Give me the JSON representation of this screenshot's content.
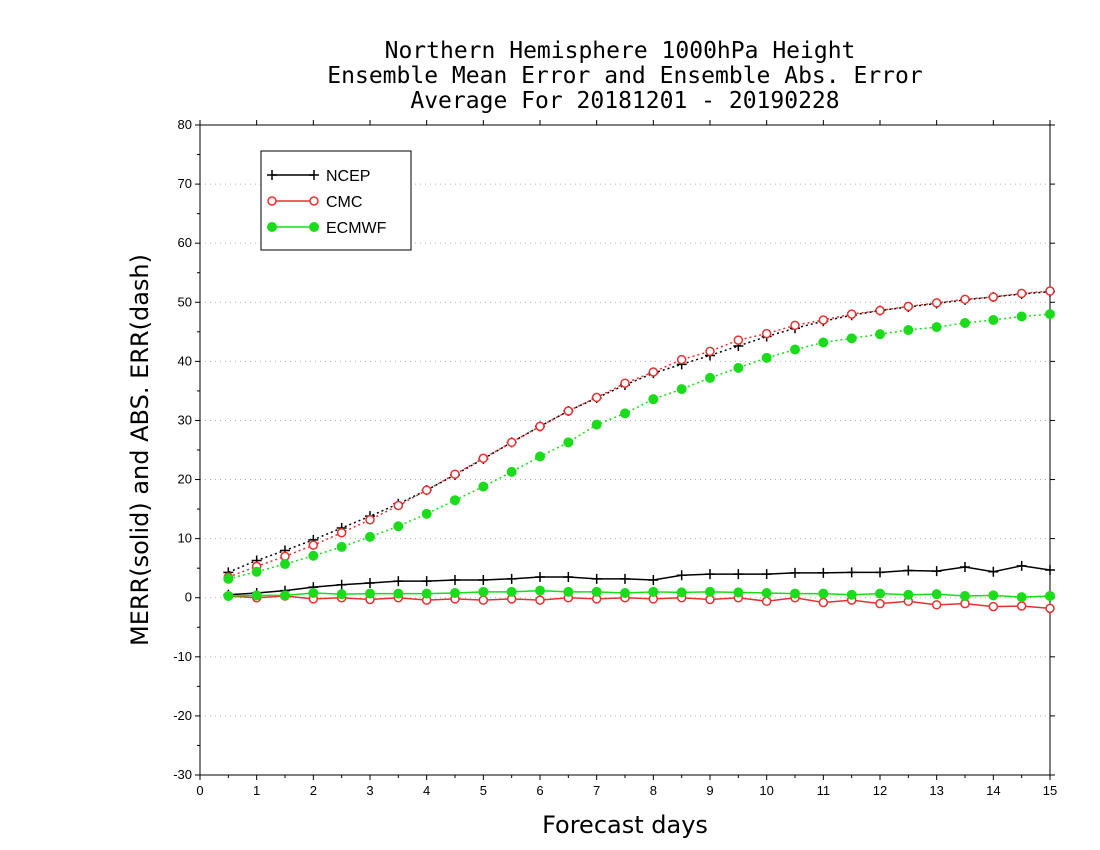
{
  "chart_data": {
    "type": "line",
    "title_lines": [
      "Northern Hemisphere 1000hPa Height",
      "Ensemble Mean Error and Ensemble Abs. Error",
      "Average For 20181201 - 20190228"
    ],
    "xlabel": "Forecast days",
    "ylabel": "MERR(solid) and ABS. ERR(dash)",
    "xlim": [
      0,
      15
    ],
    "ylim": [
      -30,
      80
    ],
    "xticks": [
      0,
      1,
      2,
      3,
      4,
      5,
      6,
      7,
      8,
      9,
      10,
      11,
      12,
      13,
      14,
      15
    ],
    "yticks": [
      -30,
      -20,
      -10,
      0,
      10,
      20,
      30,
      40,
      50,
      60,
      70,
      80
    ],
    "grid": "horizontal dotted",
    "legend_position": "top-left",
    "x": [
      0.5,
      1.0,
      1.5,
      2.0,
      2.5,
      3.0,
      3.5,
      4.0,
      4.5,
      5.0,
      5.5,
      6.0,
      6.5,
      7.0,
      7.5,
      8.0,
      8.5,
      9.0,
      9.5,
      10.0,
      10.5,
      11.0,
      11.5,
      12.0,
      12.5,
      13.0,
      13.5,
      14.0,
      14.5,
      15.0
    ],
    "series": [
      {
        "name": "NCEP",
        "color": "#000000",
        "marker": "plus",
        "merr": [
          0.5,
          0.8,
          1.2,
          1.8,
          2.2,
          2.5,
          2.8,
          2.8,
          3.0,
          3.0,
          3.2,
          3.5,
          3.5,
          3.2,
          3.2,
          3.0,
          3.8,
          4.0,
          4.0,
          4.0,
          4.2,
          4.2,
          4.3,
          4.3,
          4.6,
          4.5,
          5.2,
          4.4,
          5.4,
          4.7
        ],
        "abs_err": [
          4.3,
          6.3,
          8.0,
          9.8,
          11.8,
          13.8,
          15.9,
          18.2,
          20.8,
          23.5,
          26.3,
          29.0,
          31.6,
          33.8,
          36.0,
          38.0,
          39.5,
          41.0,
          42.6,
          44.2,
          45.6,
          46.8,
          47.8,
          48.6,
          49.2,
          49.8,
          50.4,
          50.9,
          51.4,
          51.8
        ]
      },
      {
        "name": "CMC",
        "color": "#e83030",
        "marker": "open-circle",
        "merr": [
          0.3,
          0.0,
          0.3,
          -0.2,
          0.0,
          -0.3,
          0.0,
          -0.4,
          -0.2,
          -0.4,
          -0.2,
          -0.4,
          0.0,
          -0.2,
          0.0,
          -0.2,
          0.0,
          -0.3,
          0.0,
          -0.6,
          0.0,
          -0.8,
          -0.4,
          -1.0,
          -0.6,
          -1.2,
          -1.0,
          -1.5,
          -1.4,
          -1.8
        ],
        "abs_err": [
          3.5,
          5.3,
          7.0,
          8.9,
          11.0,
          13.2,
          15.6,
          18.2,
          20.9,
          23.6,
          26.3,
          29.0,
          31.6,
          33.9,
          36.3,
          38.2,
          40.3,
          41.7,
          43.6,
          44.7,
          46.1,
          47.0,
          48.0,
          48.6,
          49.3,
          49.9,
          50.5,
          50.9,
          51.5,
          51.9
        ]
      },
      {
        "name": "ECMWF",
        "color": "#1adc1a",
        "marker": "filled-circle",
        "merr": [
          0.3,
          0.4,
          0.4,
          0.8,
          0.6,
          0.7,
          0.7,
          0.7,
          0.8,
          1.0,
          1.0,
          1.2,
          1.0,
          1.0,
          0.8,
          1.0,
          0.9,
          1.0,
          0.9,
          0.8,
          0.7,
          0.7,
          0.5,
          0.7,
          0.5,
          0.6,
          0.3,
          0.4,
          0.1,
          0.3
        ],
        "abs_err": [
          3.2,
          4.4,
          5.7,
          7.1,
          8.6,
          10.3,
          12.1,
          14.2,
          16.5,
          18.8,
          21.3,
          23.9,
          26.3,
          29.3,
          31.2,
          33.6,
          35.3,
          37.2,
          38.9,
          40.6,
          42.0,
          43.2,
          43.9,
          44.6,
          45.3,
          45.8,
          46.5,
          47.0,
          47.6,
          48.0
        ]
      }
    ]
  }
}
